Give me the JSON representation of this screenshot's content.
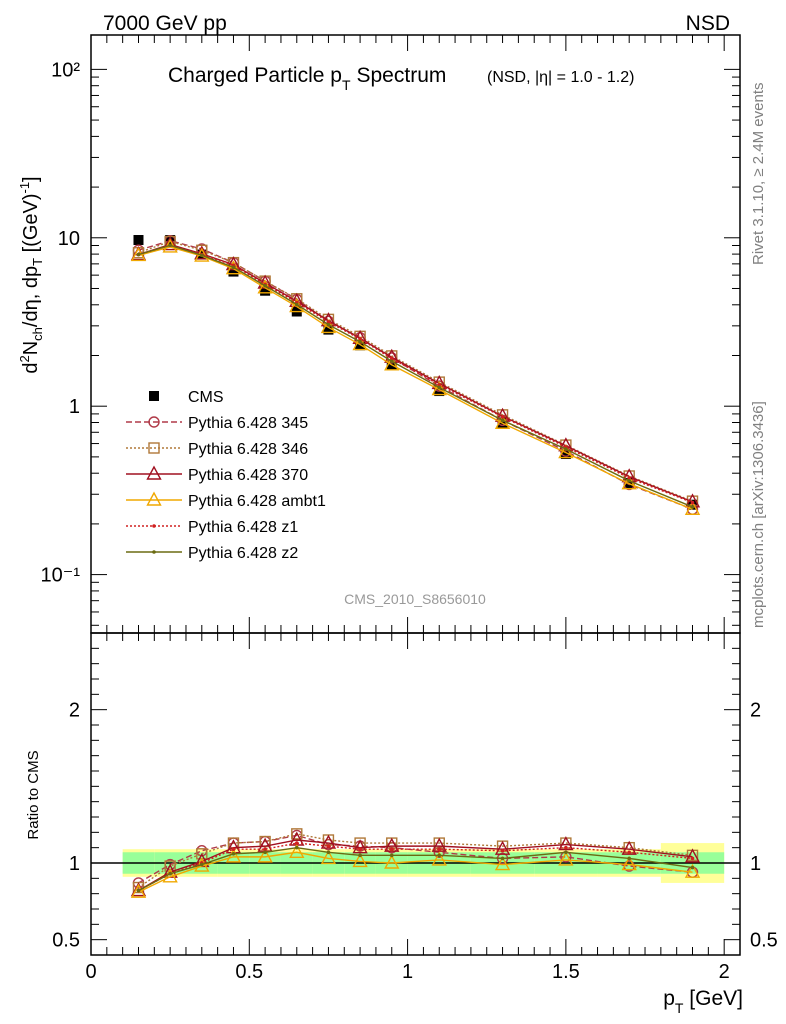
{
  "header": {
    "left": "7000 GeV pp",
    "right": "NSD",
    "title_main": "Charged Particle p",
    "title_sub": "T",
    "title_suffix": "Spectrum",
    "title_note": "(NSD, |η| = 1.0 - 1.2)",
    "watermark": "CMS_2010_S8656010",
    "side_rivet": "Rivet 3.1.10, ≥ 2.4M events",
    "side_mcplots": "mcplots.cern.ch [arXiv:1306.3436]"
  },
  "chart_data": {
    "type": "line",
    "xlabel": "p_T [GeV]",
    "ylabel": "d²N_ch/dη, dp_T [(GeV)⁻¹]",
    "ratio_ylabel": "Ratio to CMS",
    "xlim": [
      0,
      2.05
    ],
    "ylim": [
      0.045,
      160
    ],
    "yscale": "log",
    "ratio_ylim": [
      0.4,
      2.5
    ],
    "x_ticks": [
      "0",
      "0.5",
      "1",
      "1.5",
      "2"
    ],
    "y_ticks": [
      "10⁻¹",
      "1",
      "10",
      "10²"
    ],
    "ratio_ticks": [
      "0.5",
      "1",
      "2"
    ],
    "legend_position": "middle-left",
    "x": [
      0.15,
      0.25,
      0.35,
      0.45,
      0.55,
      0.65,
      0.75,
      0.85,
      0.95,
      1.1,
      1.3,
      1.5,
      1.7,
      1.9
    ],
    "bin_edges": [
      0.1,
      0.2,
      0.3,
      0.4,
      0.5,
      0.6,
      0.7,
      0.8,
      0.9,
      1.0,
      1.2,
      1.4,
      1.6,
      1.8,
      2.0
    ],
    "reference": {
      "name": "CMS",
      "values": [
        9.7,
        9.7,
        7.95,
        6.3,
        4.85,
        3.65,
        2.85,
        2.3,
        1.76,
        1.23,
        0.8,
        0.52,
        0.35,
        0.26
      ],
      "band_inner": [
        0.07,
        0.07,
        0.07,
        0.07,
        0.07,
        0.07,
        0.07,
        0.07,
        0.07,
        0.07,
        0.07,
        0.07,
        0.07,
        0.07
      ],
      "band_outer": [
        0.09,
        0.09,
        0.09,
        0.09,
        0.09,
        0.09,
        0.09,
        0.09,
        0.09,
        0.09,
        0.09,
        0.09,
        0.09,
        0.13
      ]
    },
    "series": [
      {
        "name": "Pythia 6.428 345",
        "color": "#b03a48",
        "dash": "6,3",
        "marker": "circle",
        "ratio": [
          0.87,
          0.99,
          1.08,
          1.13,
          1.14,
          1.18,
          1.12,
          1.11,
          1.1,
          1.07,
          1.03,
          1.04,
          0.98,
          0.94
        ]
      },
      {
        "name": "Pythia 6.428 346",
        "color": "#b07838",
        "dash": "2,2",
        "marker": "square",
        "ratio": [
          0.84,
          0.98,
          1.06,
          1.13,
          1.14,
          1.19,
          1.15,
          1.13,
          1.13,
          1.13,
          1.11,
          1.13,
          1.1,
          1.05
        ]
      },
      {
        "name": "Pythia 6.428 370",
        "color": "#a01020",
        "dash": "",
        "marker": "triangle",
        "ratio": [
          0.82,
          0.94,
          1.01,
          1.1,
          1.11,
          1.15,
          1.13,
          1.1,
          1.11,
          1.11,
          1.09,
          1.12,
          1.09,
          1.04
        ]
      },
      {
        "name": "Pythia 6.428 ambt1",
        "color": "#f0a800",
        "dash": "",
        "marker": "triangle",
        "ratio": [
          0.81,
          0.91,
          0.98,
          1.04,
          1.04,
          1.07,
          1.03,
          1.01,
          1.0,
          1.02,
          0.99,
          1.02,
          0.99,
          0.94
        ]
      },
      {
        "name": "Pythia 6.428 z1",
        "color": "#d02020",
        "dash": "2,2",
        "marker": "dot",
        "ratio": [
          0.82,
          0.93,
          1.0,
          1.09,
          1.09,
          1.13,
          1.11,
          1.09,
          1.09,
          1.09,
          1.08,
          1.1,
          1.07,
          1.03
        ]
      },
      {
        "name": "Pythia 6.428 z2",
        "color": "#6b6b12",
        "dash": "",
        "marker": "dot",
        "ratio": [
          0.82,
          0.93,
          0.99,
          1.06,
          1.07,
          1.1,
          1.07,
          1.05,
          1.05,
          1.05,
          1.03,
          1.07,
          1.03,
          0.97
        ]
      }
    ]
  }
}
